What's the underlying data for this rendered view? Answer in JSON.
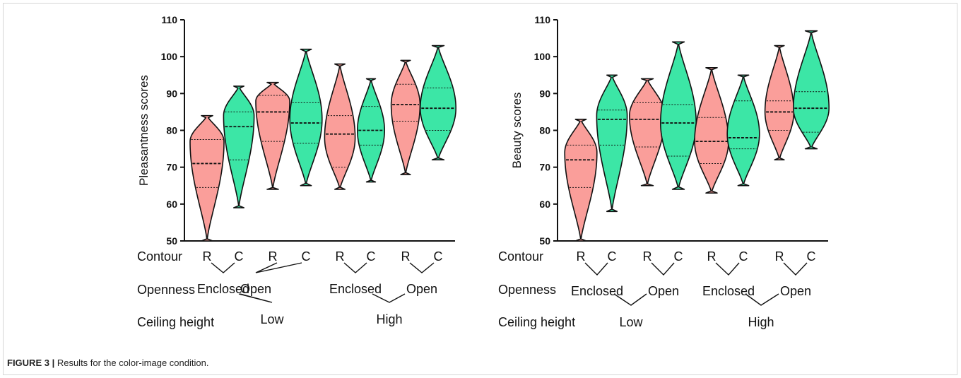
{
  "caption": {
    "label": "FIGURE 3 |",
    "text": "Results for the color-image condition."
  },
  "colors": {
    "rect": "#fa9e9a",
    "curve": "#3ce6a6",
    "stroke": "#111111"
  },
  "row_labels": {
    "contour": "Contour",
    "openness": "Openness",
    "ceiling": "Ceiling height"
  },
  "contour_codes": [
    "R",
    "C",
    "R",
    "C",
    "R",
    "C",
    "R",
    "C"
  ],
  "openness_labels": [
    "Enclosed",
    "Open",
    "Enclosed",
    "Open"
  ],
  "ceiling_labels": [
    "Low",
    "High"
  ],
  "chart_data": [
    {
      "type": "violin",
      "ylabel": "Pleasantness scores",
      "ylim": [
        50,
        110
      ],
      "yticks": [
        50,
        60,
        70,
        80,
        90,
        100,
        110
      ],
      "categories": [
        "R",
        "C",
        "R",
        "C",
        "R",
        "C",
        "R",
        "C"
      ],
      "violins": [
        {
          "contour": "R",
          "min": 50,
          "max": 84,
          "q1": 64.5,
          "median": 71,
          "q3": 77.5,
          "width": 1.0,
          "mode": 77
        },
        {
          "contour": "C",
          "min": 59,
          "max": 92,
          "q1": 72,
          "median": 81,
          "q3": 85,
          "width": 0.9,
          "mode": 84
        },
        {
          "contour": "R",
          "min": 64,
          "max": 93,
          "q1": 77,
          "median": 85,
          "q3": 89.5,
          "width": 1.0,
          "mode": 88
        },
        {
          "contour": "C",
          "min": 65,
          "max": 102,
          "q1": 76.5,
          "median": 82,
          "q3": 87.5,
          "width": 0.95,
          "mode": 83
        },
        {
          "contour": "R",
          "min": 64,
          "max": 98,
          "q1": 70,
          "median": 79,
          "q3": 84,
          "width": 0.9,
          "mode": 78
        },
        {
          "contour": "C",
          "min": 66,
          "max": 94,
          "q1": 76,
          "median": 80,
          "q3": 86.5,
          "width": 0.8,
          "mode": 80
        },
        {
          "contour": "R",
          "min": 68,
          "max": 99,
          "q1": 82.5,
          "median": 87,
          "q3": 92.5,
          "width": 0.85,
          "mode": 87
        },
        {
          "contour": "C",
          "min": 72,
          "max": 103,
          "q1": 80,
          "median": 86,
          "q3": 91.5,
          "width": 1.05,
          "mode": 86
        }
      ]
    },
    {
      "type": "violin",
      "ylabel": "Beauty scores",
      "ylim": [
        50,
        110
      ],
      "yticks": [
        50,
        60,
        70,
        80,
        90,
        100,
        110
      ],
      "categories": [
        "R",
        "C",
        "R",
        "C",
        "R",
        "C",
        "R",
        "C"
      ],
      "violins": [
        {
          "contour": "R",
          "min": 50,
          "max": 83,
          "q1": 64.5,
          "median": 72,
          "q3": 76,
          "width": 0.95,
          "mode": 74
        },
        {
          "contour": "C",
          "min": 58,
          "max": 95,
          "q1": 76,
          "median": 83,
          "q3": 85.5,
          "width": 0.9,
          "mode": 84
        },
        {
          "contour": "R",
          "min": 65,
          "max": 94,
          "q1": 75.5,
          "median": 83,
          "q3": 87.5,
          "width": 1.05,
          "mode": 84
        },
        {
          "contour": "C",
          "min": 64,
          "max": 104,
          "q1": 73,
          "median": 82,
          "q3": 87,
          "width": 1.05,
          "mode": 82
        },
        {
          "contour": "R",
          "min": 63,
          "max": 97,
          "q1": 71,
          "median": 77,
          "q3": 83.5,
          "width": 1.0,
          "mode": 77
        },
        {
          "contour": "C",
          "min": 65,
          "max": 95,
          "q1": 75,
          "median": 78,
          "q3": 88,
          "width": 0.95,
          "mode": 79
        },
        {
          "contour": "R",
          "min": 72,
          "max": 103,
          "q1": 80,
          "median": 85,
          "q3": 88,
          "width": 0.85,
          "mode": 85
        },
        {
          "contour": "C",
          "min": 75,
          "max": 107,
          "q1": 79.5,
          "median": 86,
          "q3": 90.5,
          "width": 1.05,
          "mode": 86
        }
      ]
    }
  ]
}
